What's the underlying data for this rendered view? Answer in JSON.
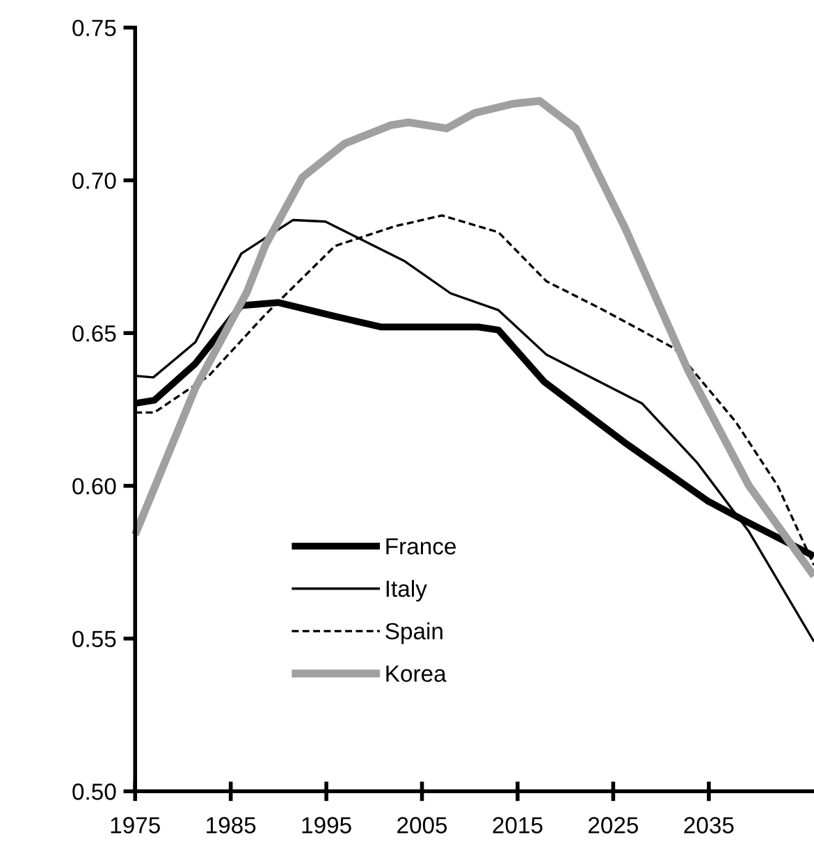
{
  "chart_data": {
    "type": "line",
    "xlim": [
      1975,
      2046
    ],
    "xticks": [
      1975,
      1985,
      1995,
      2005,
      2015,
      2025,
      2035
    ],
    "ylim": [
      0.5,
      0.75
    ],
    "yticks": [
      {
        "value": 0.5,
        "label": "0.50"
      },
      {
        "value": 0.55,
        "label": "0.55"
      },
      {
        "value": 0.6,
        "label": "0.60"
      },
      {
        "value": 0.65,
        "label": "0.65"
      },
      {
        "value": 0.7,
        "label": "0.70"
      },
      {
        "value": 0.75,
        "label": "0.75"
      }
    ],
    "grid": false,
    "legend": "bottom left",
    "marker": "none",
    "series": [
      {
        "name": "France",
        "color": "#000000",
        "line_style": "solid",
        "x": [
          1975,
          1977,
          1981.3,
          1986.1,
          1990,
          1995.9,
          2000.7,
          2010.9,
          2013,
          2017.8,
          2026.5,
          2034.9,
          2038.5,
          2046
        ],
        "values": [
          0.627,
          0.628,
          0.64,
          0.659,
          0.66,
          0.6555,
          0.652,
          0.652,
          0.651,
          0.634,
          0.6135,
          0.595,
          0.589,
          0.577
        ]
      },
      {
        "name": "Italy",
        "color": "#000000",
        "line_style": "solid",
        "x": [
          1975,
          1976.9,
          1981.3,
          1986.1,
          1991.5,
          1994.9,
          2003.2,
          2008,
          2013,
          2018,
          2028,
          2033.8,
          2039.2,
          2046
        ],
        "values": [
          0.636,
          0.6355,
          0.647,
          0.676,
          0.687,
          0.6865,
          0.6735,
          0.663,
          0.6575,
          0.643,
          0.627,
          0.6075,
          0.585,
          0.549
        ]
      },
      {
        "name": "Spain",
        "color": "#000000",
        "line_style": "dashed",
        "x": [
          1975,
          1977,
          1982.7,
          1988.6,
          1995.9,
          2002.2,
          2007.1,
          2013,
          2018,
          2024,
          2031.4,
          2037.8,
          2042.2,
          2046
        ],
        "values": [
          0.624,
          0.624,
          0.636,
          0.656,
          0.6785,
          0.685,
          0.6885,
          0.683,
          0.667,
          0.6575,
          0.645,
          0.621,
          0.6,
          0.574
        ]
      },
      {
        "name": "Korea",
        "color": "#a0a0a0",
        "line_style": "solid",
        "x": [
          1975,
          1981.3,
          1986.7,
          1988.6,
          1992.5,
          1996.9,
          2001.7,
          2003.6,
          2007.6,
          2010.5,
          2014.4,
          2017.3,
          2021.1,
          2026.3,
          2032.8,
          2039.2,
          2046
        ],
        "values": [
          0.584,
          0.632,
          0.6635,
          0.6786,
          0.701,
          0.712,
          0.718,
          0.719,
          0.717,
          0.722,
          0.725,
          0.726,
          0.717,
          0.684,
          0.638,
          0.6,
          0.5705
        ]
      }
    ]
  }
}
